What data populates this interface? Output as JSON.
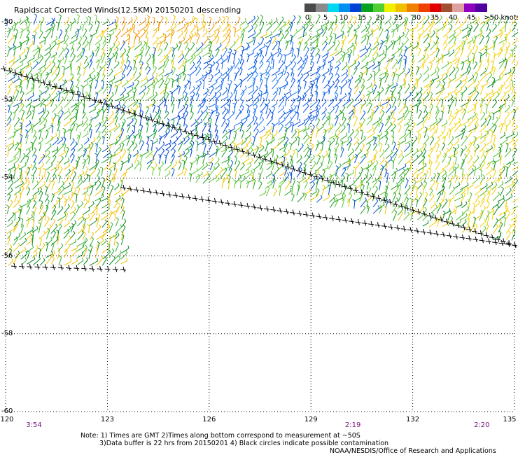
{
  "title": "Rapidscat Corrected Winds(12.5KM) 20150201 descending",
  "legend": {
    "colors": [
      "#4a4a4a",
      "#8a8a8a",
      "#00d8f0",
      "#0090f0",
      "#0040d8",
      "#0aa020",
      "#50d030",
      "#f0f000",
      "#f0c000",
      "#f08000",
      "#f04000",
      "#e00000",
      "#a05030",
      "#e0a0a0",
      "#9000c0",
      "#5000a0"
    ],
    "labels": [
      "0",
      "5",
      "10",
      "15",
      "20",
      "25",
      "30",
      "35",
      "40",
      "45",
      ">50 knots"
    ]
  },
  "axes": {
    "lat_labels": [
      "-50",
      "-52",
      "-54",
      "-56",
      "-58",
      "-60"
    ],
    "lon_labels": [
      "120",
      "123",
      "126",
      "129",
      "132",
      "135"
    ],
    "lat_values": [
      -50,
      -52,
      -54,
      -56,
      -58,
      -60
    ],
    "lon_values": [
      120,
      123,
      126,
      129,
      132,
      135
    ],
    "lon_range": [
      120,
      135
    ],
    "lat_range": [
      -60,
      -50
    ]
  },
  "times": [
    {
      "label": "3:54",
      "lon": 120.3
    },
    {
      "label": "2:19",
      "lon": 129.7
    },
    {
      "label": "2:20",
      "lon": 133.5
    }
  ],
  "notes": {
    "line1": "Note: 1) Times are GMT 2)Times along bottom correspond to measurement at ~50S",
    "line2": "3)Data buffer is 22 hrs from 20150201 4) Black circles indicate possible contamination",
    "line3": "NOAA/NESDIS/Office of Research and Applications"
  }
}
